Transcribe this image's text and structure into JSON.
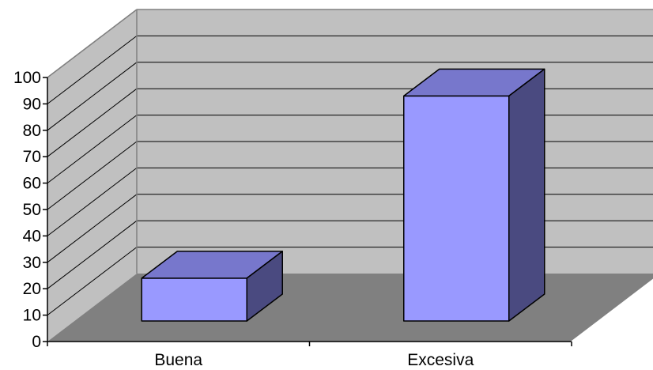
{
  "chart_data": {
    "type": "bar",
    "title": "",
    "xlabel": "",
    "ylabel": "",
    "categories": [
      "Buena",
      "Excesiva"
    ],
    "values": [
      24,
      93
    ],
    "ylim": [
      0,
      100
    ],
    "yticks": [
      0,
      10,
      20,
      30,
      40,
      50,
      60,
      70,
      80,
      90,
      100
    ],
    "grid": true,
    "legend": "none",
    "three_d": true,
    "colors": {
      "bar_front": "#9999ff",
      "bar_top": "#7777cc",
      "bar_side": "#4a4a80",
      "wall": "#c0c0c0",
      "floor": "#808080",
      "outline": "#000000"
    }
  }
}
